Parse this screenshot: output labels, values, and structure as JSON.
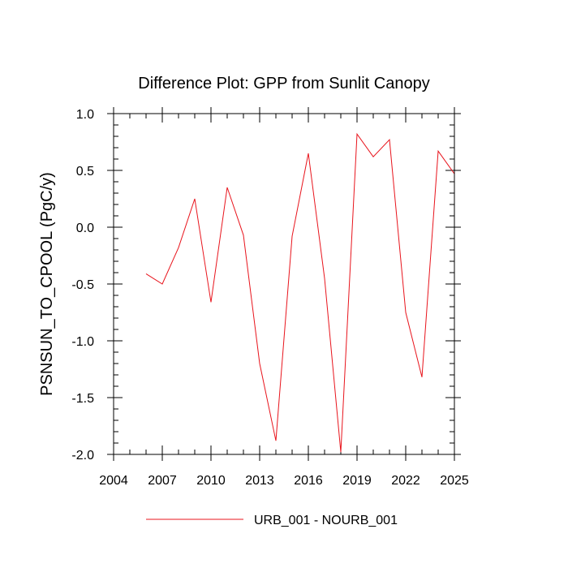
{
  "chart_data": {
    "type": "line",
    "title": "Difference Plot: GPP from Sunlit Canopy",
    "xlabel": "",
    "ylabel": "PSNSUN_TO_CPOOL  (PgC/y)",
    "xlim": [
      2004,
      2025
    ],
    "ylim": [
      -2.0,
      1.0
    ],
    "x_ticks": [
      2004,
      2007,
      2010,
      2013,
      2016,
      2019,
      2022,
      2025
    ],
    "x_tick_labels": [
      "2004",
      "2007",
      "2010",
      "2013",
      "2016",
      "2019",
      "2022",
      "2025"
    ],
    "y_ticks": [
      1.0,
      0.5,
      0.0,
      -0.5,
      -1.0,
      -1.5,
      -2.0
    ],
    "y_tick_labels": [
      "1.0",
      "0.5",
      "0.0",
      "-0.5",
      "-1.0",
      "-1.5",
      "-2.0"
    ],
    "grid": false,
    "legend_position": "bottom-center",
    "series": [
      {
        "name": "URB_001 - NOURB_001",
        "color": "#e8141c",
        "x": [
          2006,
          2007,
          2008,
          2009,
          2010,
          2011,
          2012,
          2013,
          2014,
          2015,
          2016,
          2017,
          2018,
          2019,
          2020,
          2021,
          2022,
          2023,
          2024,
          2025
        ],
        "y": [
          -0.41,
          -0.5,
          -0.18,
          0.25,
          -0.66,
          0.35,
          -0.07,
          -1.2,
          -1.88,
          -0.08,
          0.65,
          -0.45,
          -1.98,
          0.82,
          0.62,
          0.77,
          -0.75,
          -1.32,
          0.67,
          0.47
        ]
      }
    ]
  }
}
